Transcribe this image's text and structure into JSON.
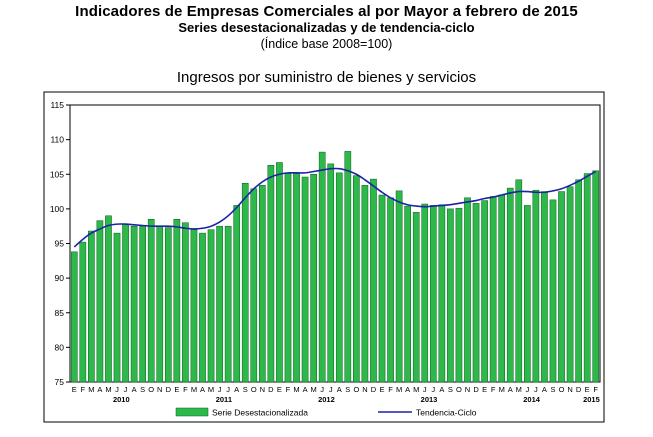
{
  "header": {
    "title_line1": "Indicadores de Empresas Comerciales al por Mayor a febrero de 2015",
    "title_line2": "Series desestacionalizadas y de tendencia-ciclo",
    "title_line3": "(Índice base 2008=100)"
  },
  "chart_data": {
    "type": "bar",
    "title": "Ingresos por suministro de bienes y servicios",
    "xlabel": "",
    "ylabel": "",
    "ylim": [
      75,
      115
    ],
    "yticks": [
      75,
      80,
      85,
      90,
      95,
      100,
      105,
      110,
      115
    ],
    "grid": false,
    "legend_position": "bottom",
    "month_labels": [
      "E",
      "F",
      "M",
      "A",
      "M",
      "J",
      "J",
      "A",
      "S",
      "O",
      "N",
      "D",
      "E",
      "F",
      "M",
      "A",
      "M",
      "J",
      "J",
      "A",
      "S",
      "O",
      "N",
      "D",
      "E",
      "F",
      "M",
      "A",
      "M",
      "J",
      "J",
      "A",
      "S",
      "O",
      "N",
      "D",
      "E",
      "F",
      "M",
      "A",
      "M",
      "J",
      "J",
      "A",
      "S",
      "O",
      "N",
      "D",
      "E",
      "F",
      "M",
      "A",
      "M",
      "J",
      "J",
      "A",
      "S",
      "O",
      "N",
      "D",
      "E",
      "F"
    ],
    "year_labels": [
      {
        "label": "2010",
        "index": 5.5
      },
      {
        "label": "2011",
        "index": 17.5
      },
      {
        "label": "2012",
        "index": 29.5
      },
      {
        "label": "2013",
        "index": 41.5
      },
      {
        "label": "2014",
        "index": 53.5
      },
      {
        "label": "2015",
        "index": 60.5
      }
    ],
    "series": [
      {
        "name": "Serie Desestacionalizada",
        "kind": "bar",
        "color": "#2db84a",
        "values": [
          93.8,
          95.2,
          96.8,
          98.3,
          99.0,
          96.5,
          97.8,
          97.5,
          97.5,
          98.5,
          97.5,
          97.3,
          98.5,
          98.0,
          97.0,
          96.5,
          97.0,
          97.5,
          97.5,
          100.5,
          103.7,
          102.9,
          103.4,
          106.3,
          106.7,
          105.1,
          105.1,
          104.6,
          105.0,
          108.2,
          106.5,
          105.2,
          108.3,
          104.8,
          103.4,
          104.3,
          102.0,
          101.6,
          102.6,
          100.4,
          99.5,
          100.7,
          100.5,
          100.6,
          100.0,
          100.1,
          101.6,
          100.8,
          101.2,
          101.8,
          102.0,
          103.0,
          104.2,
          100.5,
          102.7,
          102.5,
          101.3,
          102.5,
          103.2,
          104.2,
          105.1,
          105.5
        ]
      },
      {
        "name": "Tendencia-Ciclo",
        "kind": "line",
        "color": "#1a23a8",
        "values": [
          94.5,
          95.6,
          96.5,
          97.1,
          97.6,
          97.8,
          97.8,
          97.7,
          97.6,
          97.5,
          97.5,
          97.5,
          97.4,
          97.2,
          97.1,
          97.2,
          97.5,
          98.1,
          99.0,
          100.2,
          101.6,
          102.9,
          103.9,
          104.6,
          105.0,
          105.2,
          105.2,
          105.2,
          105.4,
          105.6,
          105.8,
          105.8,
          105.5,
          105.0,
          104.2,
          103.3,
          102.4,
          101.6,
          101.0,
          100.6,
          100.4,
          100.3,
          100.4,
          100.5,
          100.6,
          100.8,
          101.0,
          101.2,
          101.5,
          101.7,
          102.0,
          102.3,
          102.5,
          102.5,
          102.4,
          102.4,
          102.6,
          102.9,
          103.4,
          104.0,
          104.7,
          105.4
        ]
      }
    ]
  }
}
